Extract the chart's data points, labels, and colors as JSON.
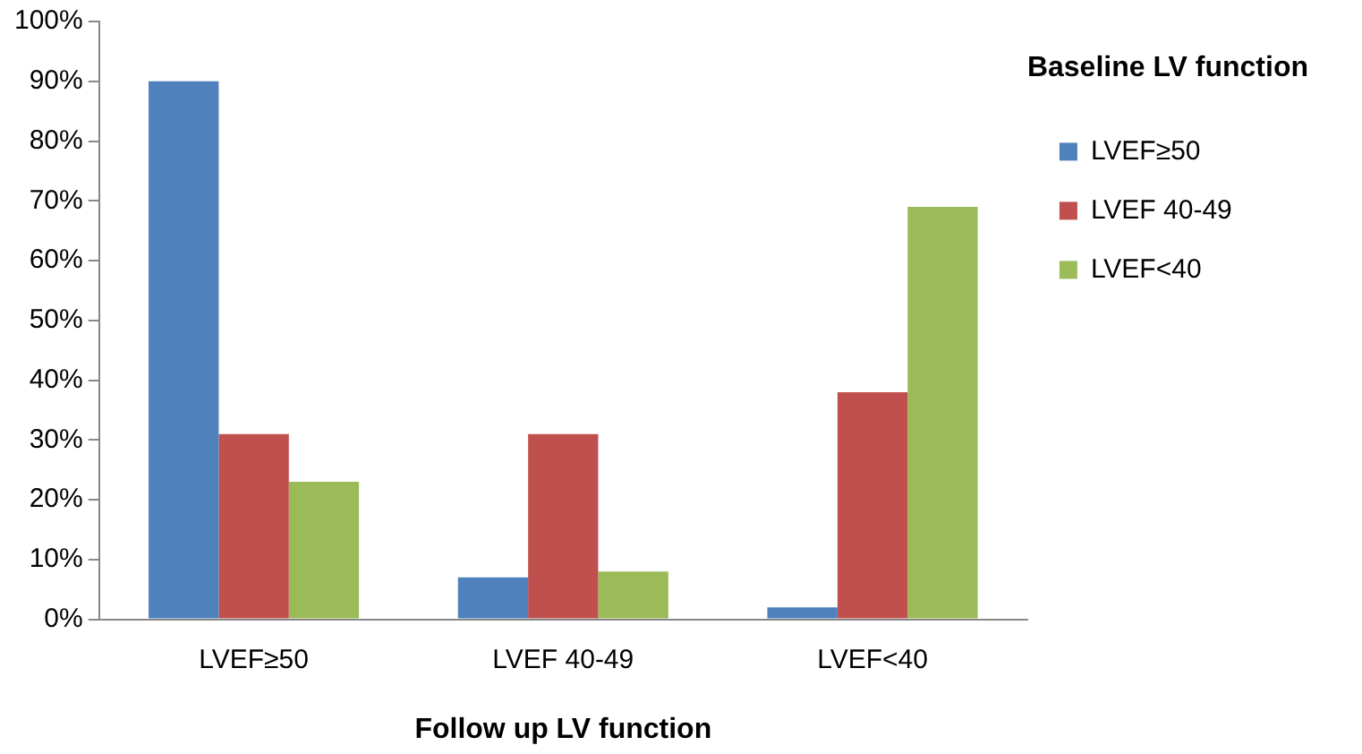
{
  "chart_data": {
    "type": "bar",
    "xlabel": "Follow up LV function",
    "legend_title": "Baseline LV function",
    "categories": [
      "LVEF≥50",
      "LVEF 40-49",
      "LVEF<40"
    ],
    "series": [
      {
        "name": "LVEF≥50",
        "color": "#4f81bd",
        "values": [
          90,
          7,
          2
        ]
      },
      {
        "name": "LVEF 40-49",
        "color": "#c0504d",
        "values": [
          31,
          31,
          38
        ]
      },
      {
        "name": "LVEF<40",
        "color": "#9bbb59",
        "values": [
          23,
          8,
          69
        ]
      }
    ],
    "ylim": [
      0,
      100
    ],
    "yticks": [
      {
        "value": 0,
        "label": "0%"
      },
      {
        "value": 10,
        "label": "10%"
      },
      {
        "value": 20,
        "label": "20%"
      },
      {
        "value": 30,
        "label": "30%"
      },
      {
        "value": 40,
        "label": "40%"
      },
      {
        "value": 50,
        "label": "50%"
      },
      {
        "value": 60,
        "label": "60%"
      },
      {
        "value": 70,
        "label": "70%"
      },
      {
        "value": 80,
        "label": "80%"
      },
      {
        "value": 90,
        "label": "90%"
      },
      {
        "value": 100,
        "label": "100%"
      }
    ],
    "grid": false,
    "legend": "right"
  }
}
